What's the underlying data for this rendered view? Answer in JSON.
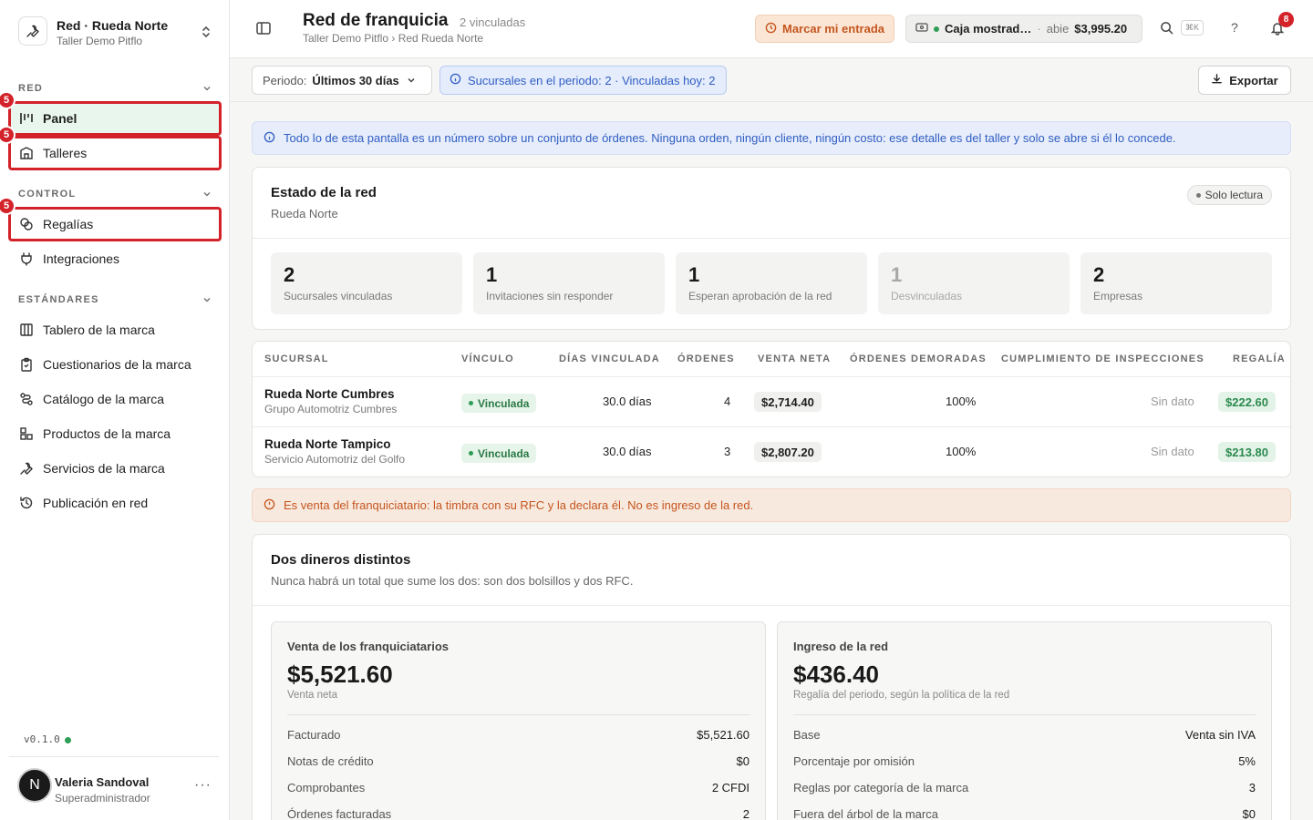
{
  "workspace": {
    "name": "Red · Rueda Norte",
    "sub": "Taller Demo Pitflo"
  },
  "sidebar": {
    "sections": [
      {
        "label": "RED"
      },
      {
        "label": "CONTROL"
      },
      {
        "label": "ESTÁNDARES"
      }
    ],
    "items": [
      {
        "label": "Panel",
        "icon": "kanban-icon"
      },
      {
        "label": "Talleres",
        "icon": "building-icon"
      },
      {
        "label": "Regalías",
        "icon": "coins-icon"
      },
      {
        "label": "Integraciones",
        "icon": "plug-icon"
      },
      {
        "label": "Tablero de la marca",
        "icon": "columns-icon"
      },
      {
        "label": "Cuestionarios de la marca",
        "icon": "clipboard-icon"
      },
      {
        "label": "Catálogo de la marca",
        "icon": "route-icon"
      },
      {
        "label": "Productos de la marca",
        "icon": "boxes-icon"
      },
      {
        "label": "Servicios de la marca",
        "icon": "wrench-icon"
      },
      {
        "label": "Publicación en red",
        "icon": "history-icon"
      }
    ],
    "marker": "5",
    "version": "v0.1.0",
    "user": {
      "initial": "N",
      "name": "Valeria Sandoval",
      "role": "Superadministrador",
      "more": "···"
    }
  },
  "header": {
    "title": "Red de franquicia",
    "count": "2 vinculadas",
    "breadcrumb": "Taller Demo Pitflo › Red Rueda Norte",
    "entrada_label": "Marcar mi entrada",
    "caja": {
      "name": "Caja mostrad…",
      "sep": "·",
      "status": "abie",
      "amount": "$3,995.20"
    },
    "kbd": "⌘K",
    "help": "?",
    "notifications": "8"
  },
  "filters": {
    "period_label": "Periodo:",
    "period_value": "Últimos 30 días",
    "info": "Sucursales en el periodo: 2 · Vinculadas hoy: 2",
    "export_label": "Exportar"
  },
  "notice_info": "Todo lo de esta pantalla es un número sobre un conjunto de órdenes. Ninguna orden, ningún cliente, ningún costo: ese detalle es del taller y solo se abre si él lo concede.",
  "estado": {
    "title": "Estado de la red",
    "subtitle": "Rueda Norte",
    "badge": "Solo lectura",
    "stats": [
      {
        "value": "2",
        "label": "Sucursales vinculadas"
      },
      {
        "value": "1",
        "label": "Invitaciones sin responder"
      },
      {
        "value": "1",
        "label": "Esperan aprobación de la red"
      },
      {
        "value": "1",
        "label": "Desvinculadas"
      },
      {
        "value": "2",
        "label": "Empresas"
      }
    ]
  },
  "table": {
    "headers": [
      "SUCURSAL",
      "VÍNCULO",
      "DÍAS VINCULADA",
      "ÓRDENES",
      "VENTA NETA",
      "ÓRDENES DEMORADAS",
      "CUMPLIMIENTO DE INSPECCIONES",
      "REGALÍA"
    ],
    "rows": [
      {
        "name": "Rueda Norte Cumbres",
        "company": "Grupo Automotriz Cumbres",
        "status": "Vinculada",
        "days": "30.0 días",
        "orders": "4",
        "net": "$2,714.40",
        "delayed": "100%",
        "inspections": "Sin dato",
        "royalty": "$222.60"
      },
      {
        "name": "Rueda Norte Tampico",
        "company": "Servicio Automotriz del Golfo",
        "status": "Vinculada",
        "days": "30.0 días",
        "orders": "3",
        "net": "$2,807.20",
        "delayed": "100%",
        "inspections": "Sin dato",
        "royalty": "$213.80"
      }
    ]
  },
  "notice_warn": "Es venta del franquiciatario: la timbra con su RFC y la declara él. No es ingreso de la red.",
  "money": {
    "title": "Dos dineros distintos",
    "subtitle": "Nunca habrá un total que sume los dos: son dos bolsillos y dos RFC.",
    "left": {
      "head": "Venta de los franquiciatarios",
      "big": "$5,521.60",
      "sub": "Venta neta",
      "rows": [
        {
          "k": "Facturado",
          "v": "$5,521.60"
        },
        {
          "k": "Notas de crédito",
          "v": "$0"
        },
        {
          "k": "Comprobantes",
          "v": "2 CFDI"
        },
        {
          "k": "Órdenes facturadas",
          "v": "2"
        }
      ]
    },
    "right": {
      "head": "Ingreso de la red",
      "big": "$436.40",
      "sub": "Regalía del periodo, según la política de la red",
      "rows": [
        {
          "k": "Base",
          "v": "Venta sin IVA"
        },
        {
          "k": "Porcentaje por omisión",
          "v": "5%"
        },
        {
          "k": "Reglas por categoría de la marca",
          "v": "3"
        },
        {
          "k": "Fuera del árbol de la marca",
          "v": "$0"
        }
      ]
    }
  },
  "colors": {
    "accent_green": "#2e9d55",
    "danger": "#d3222a",
    "info_blue": "#2f5ec4",
    "warn_orange": "#c4561d"
  }
}
